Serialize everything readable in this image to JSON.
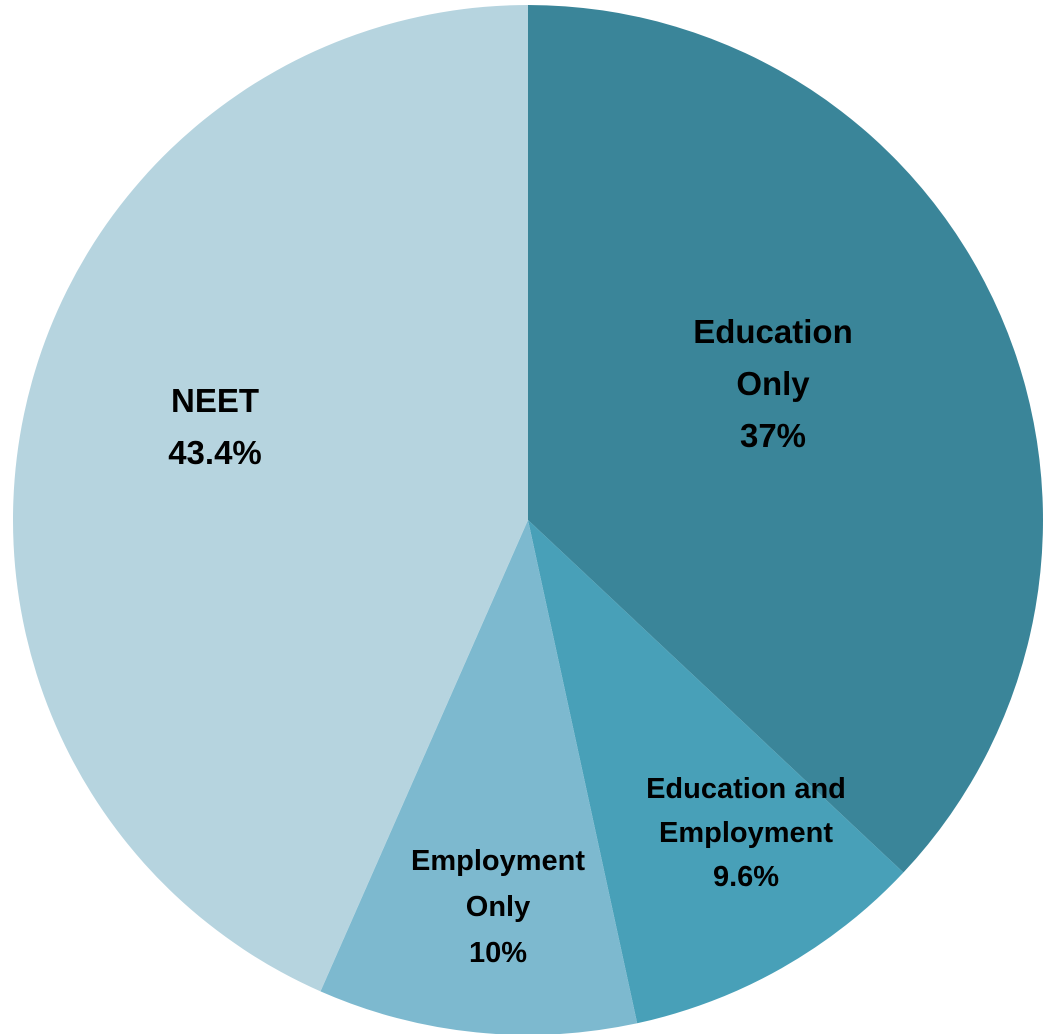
{
  "chart_data": {
    "type": "pie",
    "slices": [
      {
        "name": "Education Only",
        "value": 37,
        "label_lines": [
          "Education",
          "Only",
          "37%"
        ],
        "color": "#3a8599"
      },
      {
        "name": "Education and Employment",
        "value": 9.6,
        "label_lines": [
          "Education and",
          "Employment",
          "9.6%"
        ],
        "color": "#48a0b8"
      },
      {
        "name": "Employment Only",
        "value": 10,
        "label_lines": [
          "Employment",
          "Only",
          "10%"
        ],
        "color": "#7db9cf"
      },
      {
        "name": "NEET",
        "value": 43.4,
        "label_lines": [
          "NEET",
          "43.4%"
        ],
        "color": "#b6d4df"
      }
    ],
    "start_angle": "12 o'clock",
    "direction": "clockwise",
    "legend": "none"
  }
}
